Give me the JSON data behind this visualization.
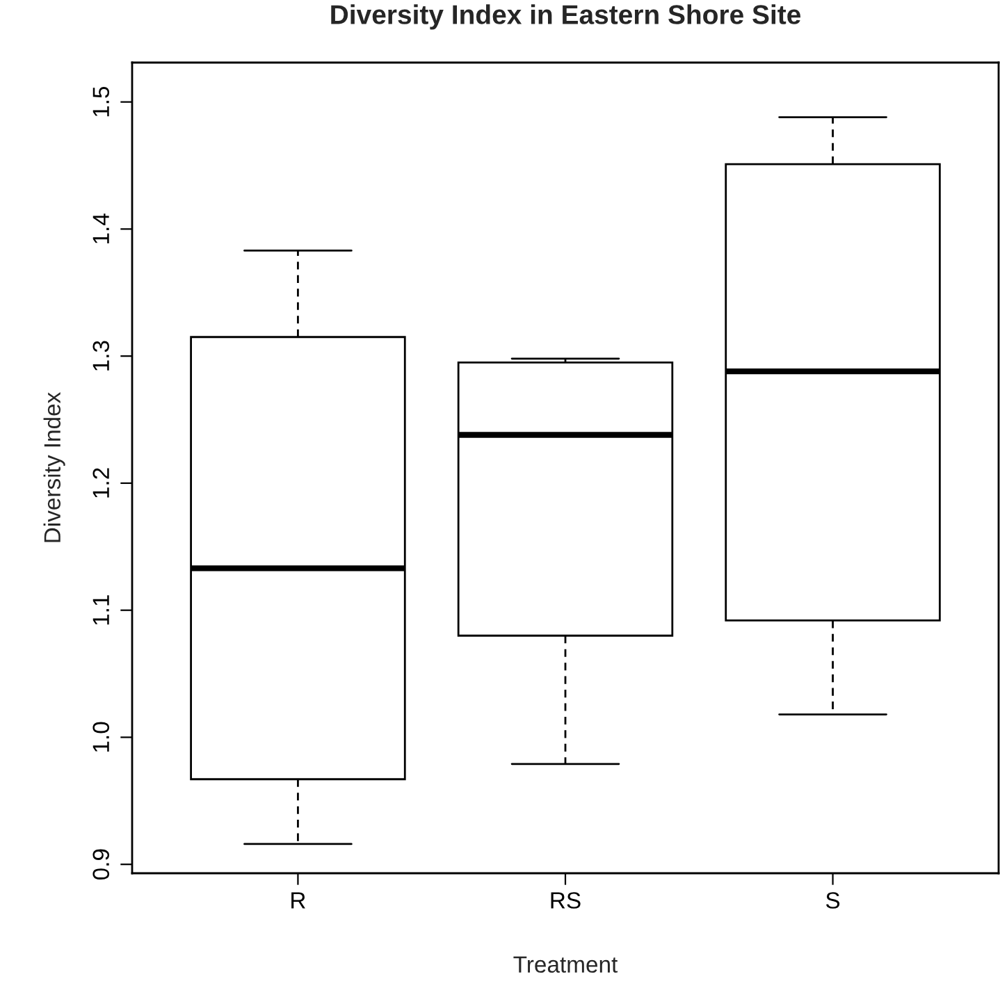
{
  "chart_data": {
    "type": "box",
    "title": "Diversity Index in Eastern Shore Site",
    "xlabel": "Treatment",
    "ylabel": "Diversity Index",
    "categories": [
      "R",
      "RS",
      "S"
    ],
    "boxes": [
      {
        "low": 0.916,
        "q1": 0.967,
        "median": 1.133,
        "q3": 1.315,
        "high": 1.383
      },
      {
        "low": 0.979,
        "q1": 1.08,
        "median": 1.238,
        "q3": 1.295,
        "high": 1.298
      },
      {
        "low": 1.018,
        "q1": 1.092,
        "median": 1.288,
        "q3": 1.451,
        "high": 1.488
      }
    ],
    "ylim": [
      0.893,
      1.531
    ],
    "yticks": [
      {
        "value": 0.9,
        "label": "0.9"
      },
      {
        "value": 1.0,
        "label": "1.0"
      },
      {
        "value": 1.1,
        "label": "1.1"
      },
      {
        "value": 1.2,
        "label": "1.2"
      },
      {
        "value": 1.3,
        "label": "1.3"
      },
      {
        "value": 1.4,
        "label": "1.4"
      },
      {
        "value": 1.5,
        "label": "1.5"
      }
    ],
    "grid": false
  }
}
